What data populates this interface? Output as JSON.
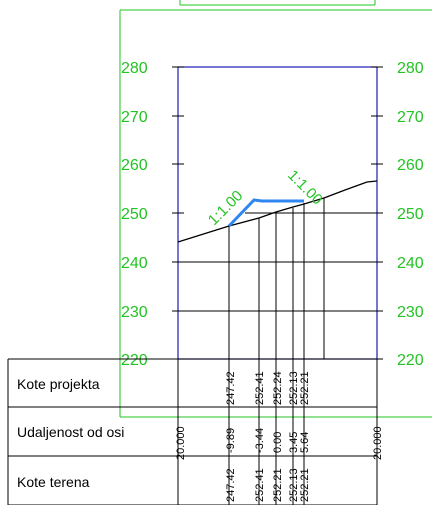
{
  "elevation_axis": {
    "ticks": [
      "280",
      "270",
      "260",
      "250",
      "240",
      "230",
      "220"
    ],
    "range": [
      220,
      280
    ]
  },
  "slope_labels": {
    "left": "1:1.00",
    "right": "1:1.00"
  },
  "table": {
    "row_labels": [
      "Kote projekta",
      "Udaljenost od osi",
      "Kote terena"
    ],
    "edge_left": "20.000",
    "edge_right": "20.000",
    "columns": [
      {
        "offset": "-9.89",
        "project": "247.42",
        "terrain": "247.42"
      },
      {
        "offset": "-3.44",
        "project": "252.41",
        "terrain": "252.41"
      },
      {
        "offset": "0.00",
        "project": "252.24",
        "terrain": "252.21"
      },
      {
        "offset": "3.45",
        "project": "252.13",
        "terrain": "252.13"
      },
      {
        "offset": "5.64",
        "project": "252.21",
        "terrain": "252.21"
      }
    ]
  },
  "colors": {
    "frame": "#22c322",
    "plot_border": "#1a1ab4",
    "design_line": "#2f86f0",
    "terrain": "#000000",
    "slope_text": "#22c322"
  }
}
